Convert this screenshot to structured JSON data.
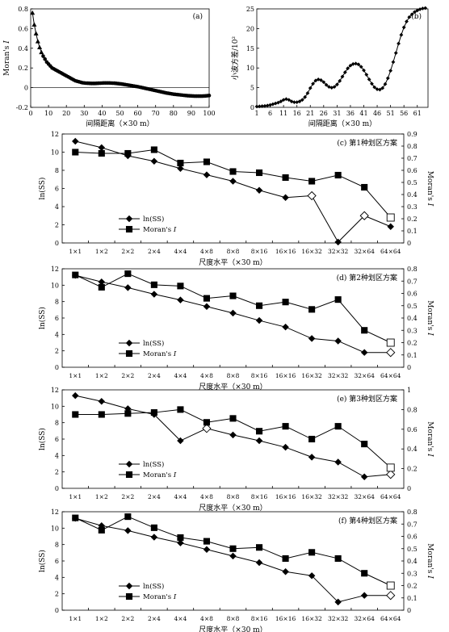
{
  "chart_data": [
    {
      "id": "a",
      "panel_label": "(a)",
      "type": "line",
      "xlabel": "间隔距离（×30 m）",
      "ylabel": "Moran's I",
      "xlim": [
        0,
        100
      ],
      "ylim": [
        -0.2,
        0.8
      ],
      "xticks": [
        0,
        10,
        20,
        30,
        40,
        50,
        60,
        70,
        80,
        90,
        100
      ],
      "yticks": [
        -0.2,
        0,
        0.2,
        0.4,
        0.6,
        0.8
      ],
      "marker_triangle_upto": 6,
      "x": [
        1,
        2,
        3,
        4,
        5,
        6,
        7,
        8,
        9,
        10,
        11,
        12,
        13,
        14,
        15,
        16,
        17,
        18,
        19,
        20,
        21,
        22,
        23,
        24,
        25,
        26,
        27,
        28,
        29,
        30,
        31,
        32,
        33,
        34,
        35,
        36,
        37,
        38,
        39,
        40,
        41,
        42,
        43,
        44,
        45,
        46,
        47,
        48,
        49,
        50,
        51,
        52,
        53,
        54,
        55,
        56,
        57,
        58,
        59,
        60,
        61,
        62,
        63,
        64,
        65,
        66,
        67,
        68,
        69,
        70,
        71,
        72,
        73,
        74,
        75,
        76,
        77,
        78,
        79,
        80,
        81,
        82,
        83,
        84,
        85,
        86,
        87,
        88,
        89,
        90,
        91,
        92,
        93,
        94,
        95,
        96,
        97,
        98,
        99,
        100
      ],
      "y": [
        0.76,
        0.64,
        0.55,
        0.47,
        0.41,
        0.36,
        0.32,
        0.29,
        0.26,
        0.24,
        0.22,
        0.2,
        0.19,
        0.18,
        0.17,
        0.16,
        0.15,
        0.14,
        0.13,
        0.12,
        0.11,
        0.1,
        0.09,
        0.08,
        0.07,
        0.065,
        0.06,
        0.055,
        0.05,
        0.048,
        0.046,
        0.045,
        0.044,
        0.043,
        0.043,
        0.043,
        0.044,
        0.045,
        0.046,
        0.047,
        0.048,
        0.048,
        0.048,
        0.048,
        0.047,
        0.046,
        0.045,
        0.043,
        0.041,
        0.039,
        0.037,
        0.034,
        0.031,
        0.028,
        0.025,
        0.022,
        0.019,
        0.016,
        0.013,
        0.01,
        0.006,
        0.002,
        -0.002,
        -0.006,
        -0.01,
        -0.014,
        -0.018,
        -0.022,
        -0.026,
        -0.03,
        -0.034,
        -0.038,
        -0.042,
        -0.046,
        -0.05,
        -0.054,
        -0.057,
        -0.06,
        -0.063,
        -0.066,
        -0.068,
        -0.07,
        -0.072,
        -0.074,
        -0.076,
        -0.078,
        -0.08,
        -0.082,
        -0.083,
        -0.084,
        -0.085,
        -0.086,
        -0.086,
        -0.086,
        -0.086,
        -0.086,
        -0.085,
        -0.084,
        -0.082,
        -0.08
      ]
    },
    {
      "id": "b",
      "panel_label": "(b)",
      "type": "line",
      "xlabel": "间隔距离（×30 m）",
      "ylabel": "小波方差/10²",
      "xlim": [
        1,
        65
      ],
      "ylim": [
        0,
        25
      ],
      "xticks": [
        1,
        6,
        11,
        16,
        21,
        26,
        31,
        36,
        41,
        46,
        51,
        56,
        61
      ],
      "yticks": [
        0,
        5,
        10,
        15,
        20,
        25
      ],
      "x": [
        1,
        2,
        3,
        4,
        5,
        6,
        7,
        8,
        9,
        10,
        11,
        12,
        13,
        14,
        15,
        16,
        17,
        18,
        19,
        20,
        21,
        22,
        23,
        24,
        25,
        26,
        27,
        28,
        29,
        30,
        31,
        32,
        33,
        34,
        35,
        36,
        37,
        38,
        39,
        40,
        41,
        42,
        43,
        44,
        45,
        46,
        47,
        48,
        49,
        50,
        51,
        52,
        53,
        54,
        55,
        56,
        57,
        58,
        59,
        60,
        61,
        62,
        63,
        64
      ],
      "y": [
        0.2,
        0.25,
        0.3,
        0.35,
        0.45,
        0.6,
        0.8,
        1.0,
        1.2,
        1.5,
        1.9,
        2.1,
        1.9,
        1.5,
        1.3,
        1.3,
        1.5,
        1.9,
        2.6,
        3.6,
        4.9,
        6.0,
        6.8,
        7.1,
        6.9,
        6.4,
        5.7,
        5.2,
        5.0,
        5.2,
        5.8,
        6.7,
        7.8,
        8.9,
        9.9,
        10.6,
        11.0,
        11.1,
        10.9,
        10.3,
        9.4,
        8.3,
        7.1,
        6.0,
        5.1,
        4.6,
        4.5,
        4.9,
        5.9,
        7.4,
        9.3,
        11.5,
        13.8,
        16.2,
        18.4,
        20.3,
        21.8,
        22.9,
        23.6,
        24.2,
        24.6,
        24.9,
        25.1,
        25.2
      ]
    },
    {
      "id": "c",
      "panel_label": "(c) 第1种划区方案",
      "type": "line",
      "categories": [
        "1×1",
        "1×2",
        "2×2",
        "2×4",
        "4×4",
        "4×8",
        "8×8",
        "8×16",
        "16×16",
        "16×32",
        "32×32",
        "32×64",
        "64×64"
      ],
      "xlabel": "尺度水平（×30 m）",
      "ylabel_left": "ln(SS)",
      "ylabel_right": "Moran's I",
      "ylim_left": [
        0,
        12
      ],
      "yticks_left": [
        0,
        2,
        4,
        6,
        8,
        10,
        12
      ],
      "ylim_right": [
        0,
        0.9
      ],
      "yticks_right": [
        0,
        0.1,
        0.2,
        0.3,
        0.4,
        0.5,
        0.6,
        0.7,
        0.8,
        0.9
      ],
      "series": [
        {
          "name": "ln(SS)",
          "axis": "left",
          "marker": "diamond",
          "values": [
            11.2,
            10.5,
            9.6,
            9.0,
            8.2,
            7.5,
            6.8,
            5.8,
            5.0,
            5.2,
            0.1,
            3.0,
            1.8
          ],
          "hollow": [
            9,
            11
          ]
        },
        {
          "name": "Moran's I",
          "axis": "right",
          "marker": "square",
          "values": [
            0.75,
            0.74,
            0.74,
            0.77,
            0.66,
            0.67,
            0.59,
            0.58,
            0.54,
            0.51,
            0.56,
            0.46,
            0.21
          ],
          "hollow": [
            12
          ]
        }
      ]
    },
    {
      "id": "d",
      "panel_label": "(d) 第2种划区方案",
      "type": "line",
      "categories": [
        "1×1",
        "1×2",
        "2×2",
        "2×4",
        "4×4",
        "4×8",
        "8×8",
        "8×16",
        "16×16",
        "16×32",
        "32×32",
        "32×64",
        "64×64"
      ],
      "xlabel": "尺度水平（×30 m）",
      "ylabel_left": "ln(SS)",
      "ylabel_right": "Moran's I",
      "ylim_left": [
        0,
        12
      ],
      "yticks_left": [
        0,
        2,
        4,
        6,
        8,
        10,
        12
      ],
      "ylim_right": [
        0,
        0.8
      ],
      "yticks_right": [
        0,
        0.1,
        0.2,
        0.3,
        0.4,
        0.5,
        0.6,
        0.7,
        0.8
      ],
      "series": [
        {
          "name": "ln(SS)",
          "axis": "left",
          "marker": "diamond",
          "values": [
            11.2,
            10.4,
            9.7,
            8.9,
            8.2,
            7.4,
            6.6,
            5.7,
            4.9,
            3.5,
            3.2,
            1.8,
            1.8
          ],
          "hollow": [
            12
          ]
        },
        {
          "name": "Moran's I",
          "axis": "right",
          "marker": "square",
          "values": [
            0.75,
            0.65,
            0.76,
            0.67,
            0.66,
            0.56,
            0.58,
            0.5,
            0.53,
            0.47,
            0.55,
            0.3,
            0.2
          ],
          "hollow": [
            12
          ]
        }
      ]
    },
    {
      "id": "e",
      "panel_label": "(e) 第3种划区方案",
      "type": "line",
      "categories": [
        "1×1",
        "1×2",
        "2×2",
        "2×4",
        "4×4",
        "4×8",
        "8×8",
        "8×16",
        "16×16",
        "16×32",
        "32×32",
        "32×64",
        "64×64"
      ],
      "xlabel": "尺度水平（×30 m）",
      "ylabel_left": "ln(SS)",
      "ylabel_right": "Moran's I",
      "ylim_left": [
        0,
        12
      ],
      "yticks_left": [
        0,
        2,
        4,
        6,
        8,
        10,
        12
      ],
      "ylim_right": [
        0,
        1.0
      ],
      "yticks_right": [
        0,
        0.2,
        0.4,
        0.6,
        0.8,
        1.0
      ],
      "series": [
        {
          "name": "ln(SS)",
          "axis": "left",
          "marker": "diamond",
          "values": [
            11.3,
            10.6,
            9.7,
            9.0,
            5.8,
            7.3,
            6.5,
            5.8,
            5.0,
            3.8,
            3.2,
            1.4,
            1.7
          ],
          "hollow": [
            5,
            12
          ]
        },
        {
          "name": "Moran's I",
          "axis": "right",
          "marker": "square",
          "values": [
            0.75,
            0.75,
            0.76,
            0.77,
            0.8,
            0.67,
            0.71,
            0.58,
            0.63,
            0.5,
            0.63,
            0.45,
            0.21
          ],
          "hollow": [
            12
          ]
        }
      ]
    },
    {
      "id": "f",
      "panel_label": "(f) 第4种划区方案",
      "type": "line",
      "categories": [
        "1×1",
        "1×2",
        "2×2",
        "2×4",
        "4×4",
        "4×8",
        "8×8",
        "8×16",
        "16×16",
        "16×32",
        "32×32",
        "32×64",
        "64×64"
      ],
      "xlabel": "尺度水平（×30 m）",
      "ylabel_left": "ln(SS)",
      "ylabel_right": "Moran's I",
      "ylim_left": [
        0,
        12
      ],
      "yticks_left": [
        0,
        2,
        4,
        6,
        8,
        10,
        12
      ],
      "ylim_right": [
        0,
        0.8
      ],
      "yticks_right": [
        0,
        0.1,
        0.2,
        0.3,
        0.4,
        0.5,
        0.6,
        0.7,
        0.8
      ],
      "series": [
        {
          "name": "ln(SS)",
          "axis": "left",
          "marker": "diamond",
          "values": [
            11.2,
            10.3,
            9.7,
            8.9,
            8.2,
            7.4,
            6.6,
            5.8,
            4.7,
            4.2,
            1.0,
            1.8,
            1.8
          ],
          "hollow": [
            12
          ]
        },
        {
          "name": "Moran's I",
          "axis": "right",
          "marker": "square",
          "values": [
            0.75,
            0.65,
            0.76,
            0.67,
            0.59,
            0.56,
            0.5,
            0.51,
            0.42,
            0.47,
            0.42,
            0.3,
            0.2
          ],
          "hollow": [
            12
          ]
        }
      ]
    }
  ]
}
